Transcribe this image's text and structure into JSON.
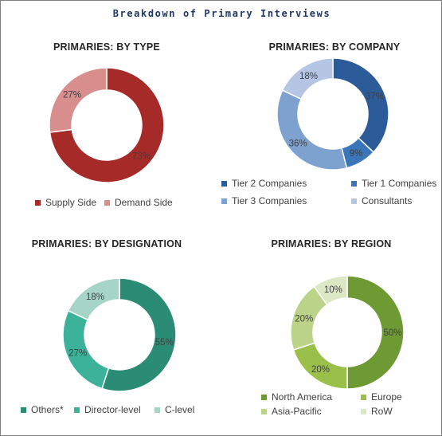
{
  "title": "Breakdown of Primary Interviews",
  "chart_data": [
    {
      "type": "pie",
      "title": "PRIMARIES: BY TYPE",
      "categories": [
        "Supply Side",
        "Demand Side"
      ],
      "values": [
        73,
        27
      ],
      "labels": [
        "73%",
        "27%"
      ],
      "colors": [
        "#a52a28",
        "#d88e8c"
      ],
      "legend": "bottom"
    },
    {
      "type": "pie",
      "title": "PRIMARIES: BY COMPANY",
      "categories": [
        "Tier 2 Companies",
        "Tier 1 Companies",
        "Tier 3 Companies",
        "Consultants"
      ],
      "values": [
        37,
        9,
        36,
        18
      ],
      "labels": [
        "37%",
        "9%",
        "36%",
        "18%"
      ],
      "colors": [
        "#2b5c99",
        "#3a76b9",
        "#7da2d0",
        "#b4c6e4"
      ],
      "legend": "bottom"
    },
    {
      "type": "pie",
      "title": "PRIMARIES: BY DESIGNATION",
      "categories": [
        "Others*",
        "Director-level",
        "C-level"
      ],
      "values": [
        55,
        27,
        18
      ],
      "labels": [
        "55%",
        "27%",
        "18%"
      ],
      "colors": [
        "#2a8c74",
        "#3cb29a",
        "#a6d4c6"
      ],
      "legend": "bottom"
    },
    {
      "type": "pie",
      "title": "PRIMARIES: BY REGION",
      "categories": [
        "North America",
        "Europe",
        "Asia-Pacific",
        "RoW"
      ],
      "values": [
        50,
        20,
        20,
        10
      ],
      "labels": [
        "50%",
        "20%",
        "20%",
        "10%"
      ],
      "colors": [
        "#6e9a34",
        "#9bc04a",
        "#bcd48a",
        "#dce8c4"
      ],
      "legend": "bottom"
    }
  ]
}
